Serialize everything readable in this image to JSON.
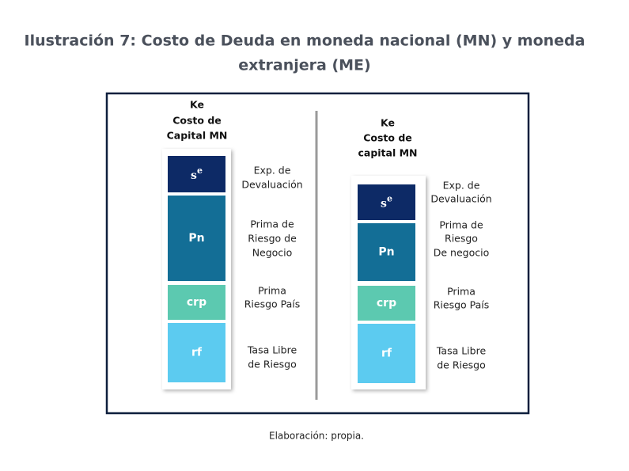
{
  "title": [
    "Ilustración 7: Costo de Deuda en moneda nacional (MN) y moneda",
    "extranjera (ME)"
  ],
  "columns": [
    {
      "header": [
        "Ke",
        "Costo  de",
        "Capital MN"
      ],
      "blocks": [
        {
          "label": {
            "base": "s",
            "sup": "e"
          },
          "description": [
            "Exp. de",
            "Devaluación"
          ]
        },
        {
          "label": "Pn",
          "description": [
            "Prima de",
            "Riesgo de",
            "Negocio"
          ]
        },
        {
          "label": "crp",
          "description": [
            "Prima",
            "Riesgo País"
          ]
        },
        {
          "label": "rf",
          "description": [
            "Tasa Libre",
            "de Riesgo"
          ]
        }
      ]
    },
    {
      "header": [
        "Ke",
        "Costo de",
        "capital MN"
      ],
      "blocks": [
        {
          "label": {
            "base": "s",
            "sup": "e"
          },
          "description": [
            "Exp. de",
            "Devaluación"
          ]
        },
        {
          "label": "Pn",
          "description": [
            "Prima de",
            "Riesgo",
            "De negocio"
          ]
        },
        {
          "label": "crp",
          "description": [
            "Prima",
            "Riesgo País"
          ]
        },
        {
          "label": "rf",
          "description": [
            "Tasa Libre",
            "de Riesgo"
          ]
        }
      ]
    }
  ],
  "footer": "Elaboración: propia."
}
